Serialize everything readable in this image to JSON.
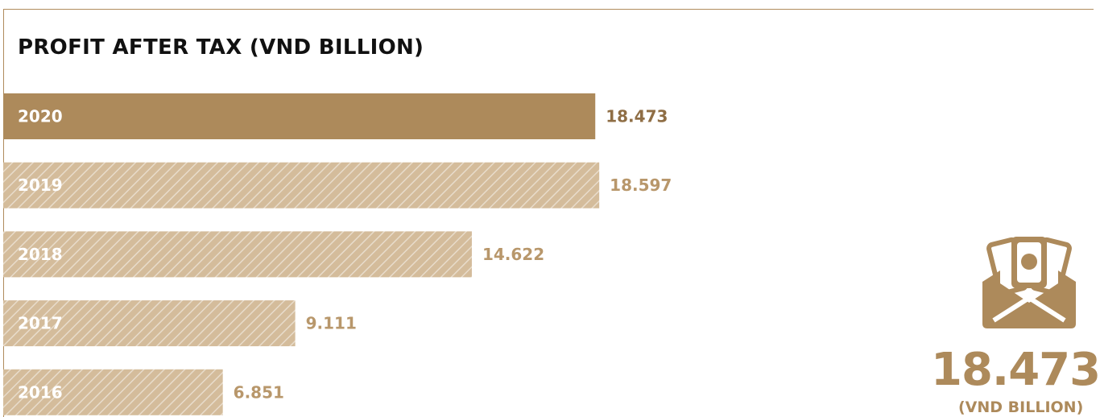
{
  "chart_data": {
    "type": "bar",
    "orientation": "horizontal",
    "title": "PROFIT AFTER TAX (VND BILLION)",
    "categories": [
      "2020",
      "2019",
      "2018",
      "2017",
      "2016"
    ],
    "values": [
      18.473,
      18.597,
      14.622,
      9.111,
      6.851
    ],
    "value_labels": [
      "18.473",
      "18.597",
      "14.622",
      "9.111",
      "6.851"
    ],
    "highlight_category": "2020",
    "xlim": [
      0,
      25
    ]
  },
  "highlight": {
    "icon": "money-envelope-icon",
    "value": "18.473",
    "unit": "(VND BILLION)"
  },
  "colors": {
    "bar_solid": "#ad8a5b",
    "bar_hatch_base": "#d4bc9b",
    "bar_hatch_line": "#e8dccb",
    "value_current": "#8f6e45",
    "value_other": "#b8976b",
    "title": "#111111",
    "accent": "#ad8a5b"
  }
}
